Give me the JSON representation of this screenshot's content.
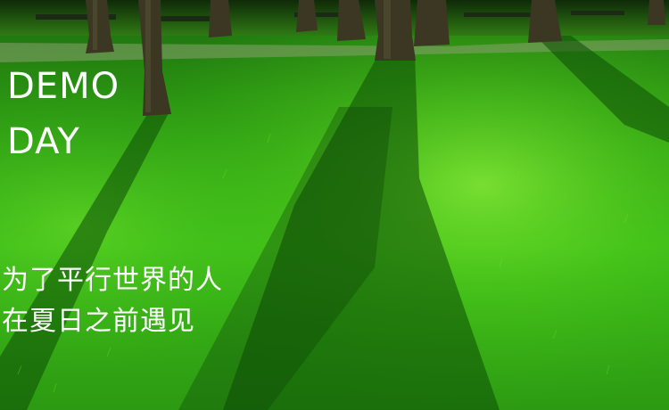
{
  "banner": {
    "title_line_1": "DEMO",
    "title_line_2": "DAY",
    "tagline_line_1": "为了平行世界的人",
    "tagline_line_2": "在夏日之前遇见"
  },
  "colors": {
    "grass_bright": "#4fd21e",
    "grass_mid": "#2ea412",
    "grass_dark": "#11570a",
    "tree_trunk": "#3a3520",
    "text": "#ffffff"
  }
}
